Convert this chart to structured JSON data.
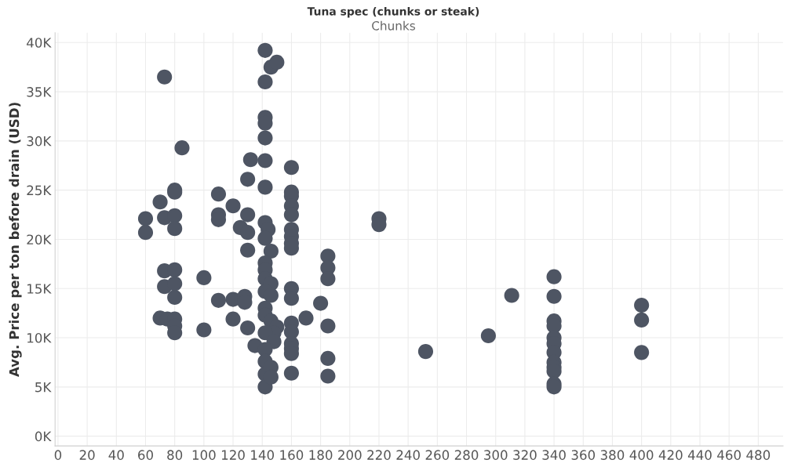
{
  "chart_data": {
    "type": "scatter",
    "title": "Tuna spec (chunks or steak)",
    "subtitle": "Chunks",
    "ylabel": "Avg. Price per ton before drain (USD)",
    "x": [
      60,
      60,
      70,
      73,
      73,
      80,
      80,
      80,
      80,
      85,
      73,
      80,
      73,
      80,
      80,
      70,
      75,
      80,
      80,
      80,
      100,
      100,
      110,
      110,
      110,
      120,
      110,
      120,
      120,
      125,
      130,
      130,
      130,
      128,
      128,
      130,
      135,
      130,
      132,
      142,
      146,
      150,
      142,
      142,
      142,
      142,
      142,
      142,
      142,
      144,
      142,
      146,
      142,
      142,
      142,
      146,
      142,
      146,
      142,
      142,
      146,
      150,
      148,
      142,
      148,
      142,
      142,
      142,
      142,
      146,
      146,
      160,
      160,
      160,
      160,
      160,
      160,
      160,
      160,
      160,
      160,
      160,
      160,
      160,
      160,
      160,
      160,
      160,
      170,
      180,
      185,
      185,
      185,
      185,
      185,
      185,
      220,
      220,
      252,
      295,
      311,
      340,
      340,
      340,
      340,
      340,
      340,
      340,
      340,
      340,
      340,
      340,
      340,
      400,
      400,
      400
    ],
    "values": [
      22100,
      20700,
      23800,
      36500,
      22200,
      22400,
      25000,
      24800,
      21100,
      29300,
      16800,
      16900,
      15200,
      15500,
      14100,
      12000,
      11900,
      11900,
      11200,
      10500,
      16100,
      10800,
      24600,
      22500,
      22000,
      23400,
      13800,
      13900,
      11900,
      21200,
      22500,
      20700,
      18900,
      14200,
      13600,
      11000,
      9200,
      26100,
      28100,
      39200,
      37500,
      38000,
      36000,
      32400,
      31800,
      30300,
      28000,
      25300,
      21700,
      21000,
      20100,
      18800,
      17600,
      16900,
      16000,
      15500,
      14700,
      14300,
      13000,
      12300,
      11700,
      11100,
      10500,
      10500,
      9600,
      8800,
      7600,
      6300,
      5000,
      7000,
      6000,
      27300,
      24800,
      24400,
      23400,
      22500,
      21000,
      20300,
      19600,
      19100,
      15000,
      14000,
      11500,
      10600,
      9400,
      8900,
      8400,
      6400,
      12000,
      13500,
      18300,
      17100,
      16000,
      11200,
      7900,
      6100,
      22100,
      21500,
      8600,
      10200,
      14300,
      16200,
      14200,
      11700,
      11200,
      10000,
      9400,
      8500,
      7500,
      7000,
      6600,
      5300,
      5000,
      13300,
      11800,
      8500
    ],
    "color": "#4e5563",
    "marker": "circle",
    "grid": true,
    "xlim": [
      -2,
      497
    ],
    "xticks": [
      0,
      20,
      40,
      60,
      80,
      100,
      120,
      140,
      160,
      180,
      200,
      220,
      240,
      260,
      280,
      300,
      320,
      340,
      360,
      380,
      400,
      420,
      440,
      460,
      480
    ],
    "ylim": [
      -1000,
      41000
    ],
    "yticks": [
      {
        "value": 0,
        "label": "0K"
      },
      {
        "value": 5000,
        "label": "5K"
      },
      {
        "value": 10000,
        "label": "10K"
      },
      {
        "value": 15000,
        "label": "15K"
      },
      {
        "value": 20000,
        "label": "20K"
      },
      {
        "value": 25000,
        "label": "25K"
      },
      {
        "value": 30000,
        "label": "30K"
      },
      {
        "value": 35000,
        "label": "35K"
      },
      {
        "value": 40000,
        "label": "40K"
      }
    ]
  }
}
